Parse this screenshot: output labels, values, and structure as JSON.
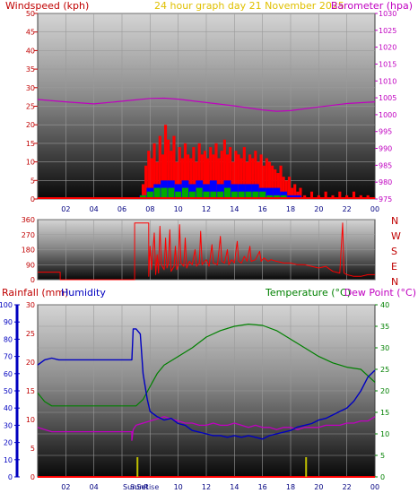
{
  "title": "24 hour graph day   21 November 2025",
  "colors": {
    "wind": "#c00000",
    "baro": "#c000c0",
    "title": "#e0c000",
    "hum": "#0000c0",
    "temp": "#008000",
    "dew": "#c000c0",
    "rain": "#ff0000",
    "gust": "#ff0000",
    "avg": "#0000ff",
    "calm": "#00aa00",
    "dir": "#ff0000",
    "sun": "#c0c000"
  },
  "sun_labels": {
    "sunrise": "SunRise",
    "sunset": "SunSet"
  },
  "chart_data": [
    {
      "type": "bar",
      "name": "wind",
      "left_label": "Windspeed (kph)",
      "right_label": "Barometer (hpa)",
      "x_ticks": [
        "02",
        "04",
        "06",
        "08",
        "10",
        "12",
        "14",
        "16",
        "18",
        "20",
        "22",
        "00"
      ],
      "y_left": {
        "min": 0,
        "max": 50,
        "ticks": [
          0,
          5,
          10,
          15,
          20,
          25,
          30,
          35,
          40,
          45,
          50
        ]
      },
      "y_right": {
        "min": 975,
        "max": 1030,
        "ticks": [
          975,
          980,
          985,
          990,
          995,
          1000,
          1005,
          1010,
          1015,
          1020,
          1025,
          1030
        ]
      },
      "gust_points": [
        [
          7.5,
          4
        ],
        [
          7.7,
          9
        ],
        [
          7.9,
          13
        ],
        [
          8.1,
          11
        ],
        [
          8.3,
          15
        ],
        [
          8.5,
          10
        ],
        [
          8.7,
          17
        ],
        [
          8.9,
          12
        ],
        [
          9.1,
          20
        ],
        [
          9.3,
          16
        ],
        [
          9.5,
          13
        ],
        [
          9.7,
          17
        ],
        [
          9.9,
          10
        ],
        [
          10.1,
          14
        ],
        [
          10.3,
          11
        ],
        [
          10.5,
          15
        ],
        [
          10.7,
          12
        ],
        [
          10.9,
          11
        ],
        [
          11.1,
          14
        ],
        [
          11.3,
          10
        ],
        [
          11.5,
          15
        ],
        [
          11.7,
          12
        ],
        [
          11.9,
          13
        ],
        [
          12.1,
          11
        ],
        [
          12.3,
          14
        ],
        [
          12.5,
          12
        ],
        [
          12.7,
          15
        ],
        [
          12.9,
          11
        ],
        [
          13.1,
          13
        ],
        [
          13.3,
          16
        ],
        [
          13.5,
          12
        ],
        [
          13.7,
          14
        ],
        [
          13.9,
          10
        ],
        [
          14.1,
          13
        ],
        [
          14.3,
          12
        ],
        [
          14.5,
          11
        ],
        [
          14.7,
          14
        ],
        [
          14.9,
          10
        ],
        [
          15.1,
          12
        ],
        [
          15.3,
          11
        ],
        [
          15.5,
          13
        ],
        [
          15.7,
          10
        ],
        [
          15.9,
          12
        ],
        [
          16.1,
          9
        ],
        [
          16.3,
          11
        ],
        [
          16.5,
          10
        ],
        [
          16.7,
          9
        ],
        [
          16.9,
          8
        ],
        [
          17.1,
          7
        ],
        [
          17.3,
          9
        ],
        [
          17.5,
          6
        ],
        [
          17.7,
          5
        ],
        [
          17.9,
          6
        ],
        [
          18.1,
          3
        ],
        [
          18.3,
          4
        ],
        [
          18.5,
          2
        ],
        [
          18.7,
          3
        ],
        [
          19.0,
          1
        ],
        [
          19.5,
          2
        ],
        [
          20.0,
          1
        ],
        [
          20.5,
          2
        ],
        [
          21.0,
          1
        ],
        [
          21.5,
          2
        ],
        [
          22.0,
          1
        ],
        [
          22.5,
          2
        ],
        [
          23.0,
          1
        ],
        [
          23.5,
          1
        ]
      ],
      "avg_points": [
        [
          7.5,
          1
        ],
        [
          8.0,
          3
        ],
        [
          8.5,
          4
        ],
        [
          9.0,
          5
        ],
        [
          9.5,
          5
        ],
        [
          10.0,
          4
        ],
        [
          10.5,
          5
        ],
        [
          11.0,
          4
        ],
        [
          11.5,
          5
        ],
        [
          12.0,
          4
        ],
        [
          12.5,
          5
        ],
        [
          13.0,
          4
        ],
        [
          13.5,
          5
        ],
        [
          14.0,
          4
        ],
        [
          14.5,
          4
        ],
        [
          15.0,
          4
        ],
        [
          15.5,
          4
        ],
        [
          16.0,
          3
        ],
        [
          16.5,
          3
        ],
        [
          17.0,
          3
        ],
        [
          17.5,
          2
        ],
        [
          18.0,
          1
        ],
        [
          18.5,
          1
        ],
        [
          19.0,
          0
        ]
      ],
      "calm_points": [
        [
          7.5,
          1
        ],
        [
          8.0,
          2
        ],
        [
          8.5,
          3
        ],
        [
          9.0,
          3
        ],
        [
          9.5,
          3
        ],
        [
          10.0,
          2
        ],
        [
          10.5,
          3
        ],
        [
          11.0,
          2
        ],
        [
          11.5,
          3
        ],
        [
          12.0,
          2
        ],
        [
          12.5,
          2
        ],
        [
          13.0,
          2
        ],
        [
          13.5,
          3
        ],
        [
          14.0,
          2
        ],
        [
          14.5,
          2
        ],
        [
          15.0,
          2
        ],
        [
          15.5,
          2
        ],
        [
          16.0,
          2
        ],
        [
          16.5,
          1
        ],
        [
          17.0,
          1
        ],
        [
          17.5,
          1
        ],
        [
          18.0,
          0
        ]
      ],
      "baro_points": [
        [
          0,
          1004.5
        ],
        [
          2,
          1003.8
        ],
        [
          4,
          1003.2
        ],
        [
          6,
          1004.0
        ],
        [
          8,
          1004.8
        ],
        [
          9,
          1004.9
        ],
        [
          10,
          1004.6
        ],
        [
          12,
          1003.6
        ],
        [
          14,
          1002.6
        ],
        [
          16,
          1001.4
        ],
        [
          17,
          1001.0
        ],
        [
          18,
          1001.2
        ],
        [
          20,
          1002.3
        ],
        [
          22,
          1003.3
        ],
        [
          24,
          1003.8
        ]
      ]
    },
    {
      "type": "line",
      "name": "direction",
      "right_labels": [
        "N",
        "W",
        "S",
        "E",
        "N"
      ],
      "y": {
        "min": 0,
        "max": 360,
        "ticks": [
          0,
          90,
          180,
          270,
          360
        ]
      },
      "x_ticks": [],
      "points": [
        [
          0,
          45
        ],
        [
          1.6,
          45
        ],
        [
          1.6,
          0
        ],
        [
          6.9,
          0
        ],
        [
          6.9,
          340
        ],
        [
          7.9,
          340
        ],
        [
          7.9,
          20
        ],
        [
          8.0,
          200
        ],
        [
          8.1,
          60
        ],
        [
          8.3,
          280
        ],
        [
          8.4,
          30
        ],
        [
          8.5,
          150
        ],
        [
          8.6,
          40
        ],
        [
          8.7,
          320
        ],
        [
          8.8,
          90
        ],
        [
          9.0,
          60
        ],
        [
          9.1,
          250
        ],
        [
          9.2,
          70
        ],
        [
          9.3,
          100
        ],
        [
          9.4,
          300
        ],
        [
          9.5,
          50
        ],
        [
          9.7,
          80
        ],
        [
          9.8,
          200
        ],
        [
          9.9,
          60
        ],
        [
          10.0,
          90
        ],
        [
          10.1,
          330
        ],
        [
          10.2,
          100
        ],
        [
          10.4,
          80
        ],
        [
          10.5,
          250
        ],
        [
          10.6,
          70
        ],
        [
          10.8,
          110
        ],
        [
          11.0,
          90
        ],
        [
          11.2,
          180
        ],
        [
          11.3,
          80
        ],
        [
          11.5,
          100
        ],
        [
          11.6,
          290
        ],
        [
          11.7,
          90
        ],
        [
          12.0,
          120
        ],
        [
          12.2,
          80
        ],
        [
          12.4,
          210
        ],
        [
          12.5,
          100
        ],
        [
          12.8,
          90
        ],
        [
          13.0,
          260
        ],
        [
          13.1,
          110
        ],
        [
          13.3,
          100
        ],
        [
          13.5,
          180
        ],
        [
          13.6,
          90
        ],
        [
          13.8,
          120
        ],
        [
          14.0,
          100
        ],
        [
          14.2,
          230
        ],
        [
          14.3,
          110
        ],
        [
          14.5,
          100
        ],
        [
          14.7,
          140
        ],
        [
          14.9,
          110
        ],
        [
          15.1,
          200
        ],
        [
          15.2,
          110
        ],
        [
          15.5,
          120
        ],
        [
          15.8,
          170
        ],
        [
          15.9,
          110
        ],
        [
          16.1,
          130
        ],
        [
          16.4,
          110
        ],
        [
          16.6,
          120
        ],
        [
          17.0,
          110
        ],
        [
          17.5,
          100
        ],
        [
          18.0,
          100
        ],
        [
          18.5,
          90
        ],
        [
          19.0,
          90
        ],
        [
          19.5,
          80
        ],
        [
          20.0,
          70
        ],
        [
          20.5,
          80
        ],
        [
          21.0,
          50
        ],
        [
          21.5,
          40
        ],
        [
          21.7,
          340
        ],
        [
          21.8,
          40
        ],
        [
          22.0,
          30
        ],
        [
          22.5,
          20
        ],
        [
          23.0,
          20
        ],
        [
          23.5,
          30
        ],
        [
          24,
          30
        ]
      ]
    },
    {
      "type": "line",
      "name": "temperature",
      "left_label": "Rainfall (mm)",
      "left_label2": "Humidity",
      "right_label": "Temperature (°C)",
      "right_label2": "Dew Point (°C)",
      "x_ticks": [
        "02",
        "04",
        "06",
        "08",
        "10",
        "12",
        "14",
        "16",
        "18",
        "20",
        "22",
        "00"
      ],
      "humidity_axis": {
        "min": 0,
        "max": 100,
        "ticks": [
          0,
          10,
          20,
          30,
          40,
          50,
          60,
          70,
          80,
          90,
          100
        ]
      },
      "rain_axis": {
        "min": 0,
        "max": 30,
        "ticks": [
          0,
          5,
          10,
          15,
          20,
          25,
          30
        ]
      },
      "temp_axis": {
        "min": 0,
        "max": 40,
        "ticks": [
          0,
          5,
          10,
          15,
          20,
          25,
          30,
          35,
          40
        ]
      },
      "humidity_points": [
        [
          0,
          65
        ],
        [
          0.5,
          68
        ],
        [
          1,
          69
        ],
        [
          1.5,
          68
        ],
        [
          6.7,
          68
        ],
        [
          6.8,
          86
        ],
        [
          7.0,
          86
        ],
        [
          7.3,
          83
        ],
        [
          7.5,
          60
        ],
        [
          7.8,
          45
        ],
        [
          8.0,
          38
        ],
        [
          8.5,
          35
        ],
        [
          9.0,
          33
        ],
        [
          9.5,
          34
        ],
        [
          10.0,
          31
        ],
        [
          10.5,
          30
        ],
        [
          11.0,
          27
        ],
        [
          11.5,
          26
        ],
        [
          12.0,
          25
        ],
        [
          12.5,
          24
        ],
        [
          13.0,
          24
        ],
        [
          13.5,
          23
        ],
        [
          14.0,
          24
        ],
        [
          14.5,
          23
        ],
        [
          15.0,
          24
        ],
        [
          15.5,
          23
        ],
        [
          16.0,
          22
        ],
        [
          16.5,
          24
        ],
        [
          17.0,
          25
        ],
        [
          17.5,
          26
        ],
        [
          18.0,
          27
        ],
        [
          18.5,
          29
        ],
        [
          19.0,
          30
        ],
        [
          19.5,
          31
        ],
        [
          20.0,
          33
        ],
        [
          20.5,
          34
        ],
        [
          21.0,
          36
        ],
        [
          21.5,
          38
        ],
        [
          22.0,
          40
        ],
        [
          22.5,
          44
        ],
        [
          23.0,
          50
        ],
        [
          23.5,
          58
        ],
        [
          24,
          62
        ]
      ],
      "temp_points": [
        [
          0,
          19.5
        ],
        [
          0.5,
          17.5
        ],
        [
          1,
          16.5
        ],
        [
          6.5,
          16.5
        ],
        [
          7.0,
          16.5
        ],
        [
          7.5,
          18
        ],
        [
          8.0,
          21
        ],
        [
          8.5,
          24
        ],
        [
          9.0,
          26
        ],
        [
          10.0,
          28
        ],
        [
          11.0,
          30
        ],
        [
          12.0,
          32.5
        ],
        [
          13.0,
          34
        ],
        [
          14.0,
          35
        ],
        [
          15.0,
          35.5
        ],
        [
          16.0,
          35.2
        ],
        [
          17.0,
          34
        ],
        [
          18.0,
          32
        ],
        [
          19.0,
          30
        ],
        [
          20.0,
          28
        ],
        [
          21.0,
          26.5
        ],
        [
          22.0,
          25.5
        ],
        [
          23.0,
          25
        ],
        [
          24,
          22
        ]
      ],
      "dew_points": [
        [
          0,
          11.5
        ],
        [
          0.5,
          11
        ],
        [
          1,
          10.5
        ],
        [
          6.7,
          10.5
        ],
        [
          6.7,
          8.5
        ],
        [
          6.8,
          11
        ],
        [
          7.0,
          12
        ],
        [
          7.5,
          12.5
        ],
        [
          8.0,
          13
        ],
        [
          8.5,
          13.5
        ],
        [
          9.0,
          14
        ],
        [
          9.5,
          13.5
        ],
        [
          10.0,
          13
        ],
        [
          10.5,
          12.5
        ],
        [
          11.0,
          12.5
        ],
        [
          11.5,
          12
        ],
        [
          12.0,
          12
        ],
        [
          12.5,
          12.5
        ],
        [
          13.0,
          12
        ],
        [
          13.5,
          12
        ],
        [
          14.0,
          12.5
        ],
        [
          14.5,
          12
        ],
        [
          15.0,
          11.5
        ],
        [
          15.5,
          12
        ],
        [
          16.0,
          11.5
        ],
        [
          16.5,
          11.5
        ],
        [
          17.0,
          11
        ],
        [
          17.5,
          11.5
        ],
        [
          18.0,
          11.5
        ],
        [
          18.5,
          11
        ],
        [
          19.0,
          11.5
        ],
        [
          19.5,
          11.5
        ],
        [
          20.0,
          11.5
        ],
        [
          20.5,
          12
        ],
        [
          21.0,
          12
        ],
        [
          21.5,
          12
        ],
        [
          22.0,
          12.5
        ],
        [
          22.5,
          12.5
        ],
        [
          23.0,
          13
        ],
        [
          23.5,
          13
        ],
        [
          24,
          14
        ]
      ],
      "rain_points": [
        [
          0,
          0
        ],
        [
          24,
          0
        ]
      ],
      "sunrise_hour": 7.1,
      "sunset_hour": 19.1
    }
  ]
}
